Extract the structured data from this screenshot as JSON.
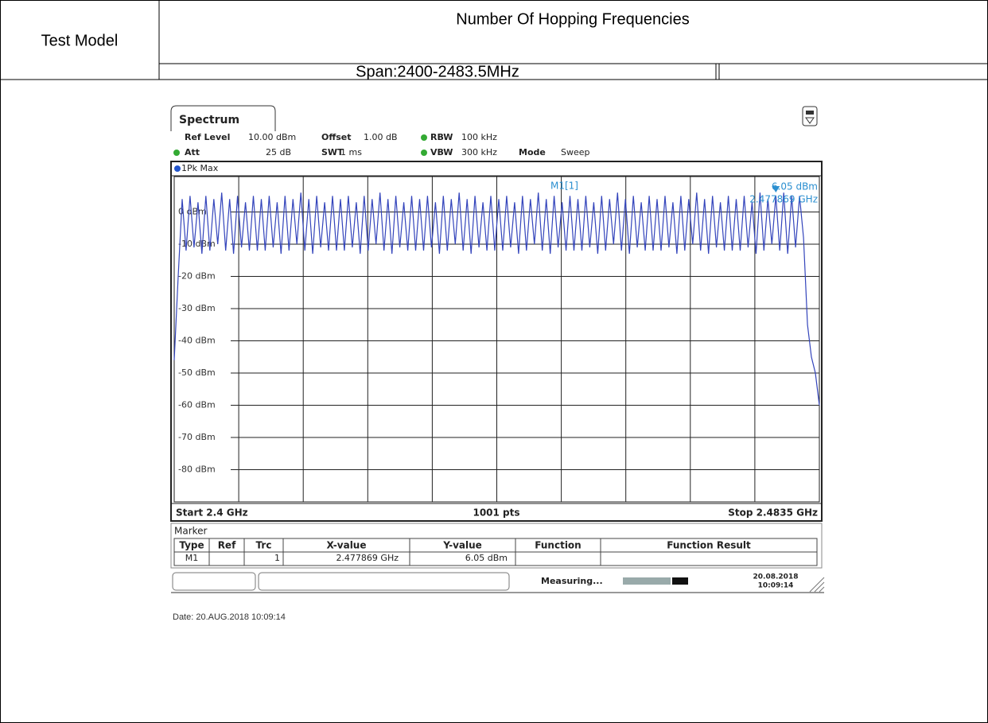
{
  "header": {
    "test_model_label": "Test Model",
    "title": "Number Of Hopping Frequencies",
    "span": "Span:2400-2483.5MHz"
  },
  "spectrum": {
    "tab": "Spectrum",
    "settings": [
      [
        "Ref Level",
        "10.00 dBm",
        "Offset",
        "1.00 dB",
        "RBW",
        "100 kHz"
      ],
      [
        "Att",
        "25 dB",
        "SWT",
        "1 ms",
        "VBW",
        "300 kHz",
        "Mode",
        "Sweep"
      ]
    ],
    "trace_name": "1Pk Max",
    "ylim": [
      -90,
      10
    ],
    "yticks": [
      {
        "value": 0,
        "label": "0 dBm"
      },
      {
        "value": -10,
        "label": "-10 dBm"
      },
      {
        "value": -20,
        "label": "-20 dBm"
      },
      {
        "value": -30,
        "label": "-30 dBm"
      },
      {
        "value": -40,
        "label": "-40 dBm"
      },
      {
        "value": -50,
        "label": "-50 dBm"
      },
      {
        "value": -60,
        "label": "-60 dBm"
      },
      {
        "value": -70,
        "label": "-70 dBm"
      },
      {
        "value": -80,
        "label": "-80 dBm"
      }
    ],
    "xlim": [
      2.4,
      2.4835
    ],
    "start": "Start 2.4 GHz",
    "points": "1001 pts",
    "stop": "Stop 2.4835 GHz",
    "trace": [
      -46,
      -20,
      4,
      -12,
      5,
      -11,
      3,
      -13,
      5,
      -12,
      4,
      -10,
      6,
      -12,
      4,
      -13,
      5,
      -11,
      3,
      -12,
      5,
      -12,
      4,
      -12,
      5,
      -11,
      3,
      -13,
      5,
      -12,
      4,
      -10,
      6,
      -12,
      4,
      -13,
      5,
      -11,
      3,
      -12,
      5,
      -12,
      4,
      -12,
      5,
      -11,
      3,
      -13,
      5,
      -12,
      4,
      -10,
      6,
      -12,
      4,
      -13,
      5,
      -11,
      3,
      -12,
      5,
      -12,
      4,
      -12,
      5,
      -11,
      3,
      -13,
      5,
      -12,
      4,
      -10,
      6,
      -12,
      4,
      -13,
      5,
      -11,
      3,
      -12,
      5,
      -12,
      4,
      -12,
      5,
      -11,
      3,
      -13,
      5,
      -12,
      4,
      -10,
      6,
      -12,
      4,
      -13,
      5,
      -11,
      3,
      -12,
      5,
      -12,
      4,
      -12,
      5,
      -11,
      3,
      -13,
      5,
      -12,
      4,
      -10,
      6,
      -12,
      4,
      -13,
      5,
      -11,
      3,
      -12,
      5,
      -12,
      4,
      -12,
      5,
      -11,
      3,
      -13,
      5,
      -12,
      4,
      -10,
      6,
      -12,
      4,
      -13,
      5,
      -11,
      3,
      -12,
      5,
      -12,
      4,
      -12,
      5,
      -11,
      3,
      -13,
      6,
      -12,
      4,
      -10,
      5,
      -12,
      6,
      -13,
      5,
      -11,
      5,
      -8,
      -35,
      -45,
      -50,
      -60
    ],
    "marker": {
      "label": "M1[1]",
      "x": 2.477869,
      "y": 6.05
    },
    "marker_table": {
      "title": "Marker",
      "columns": [
        "Type",
        "Ref",
        "Trc",
        "X-value",
        "Y-value",
        "Function",
        "Function Result"
      ],
      "row": [
        "M1",
        "1",
        "2.477869 GHz",
        "6.05 dBm"
      ]
    },
    "status": "Measuring...",
    "status_date": "20.08.2018",
    "status_time": "10:09:14"
  },
  "date_line": "Date: 20.AUG.2018  10:09:14"
}
